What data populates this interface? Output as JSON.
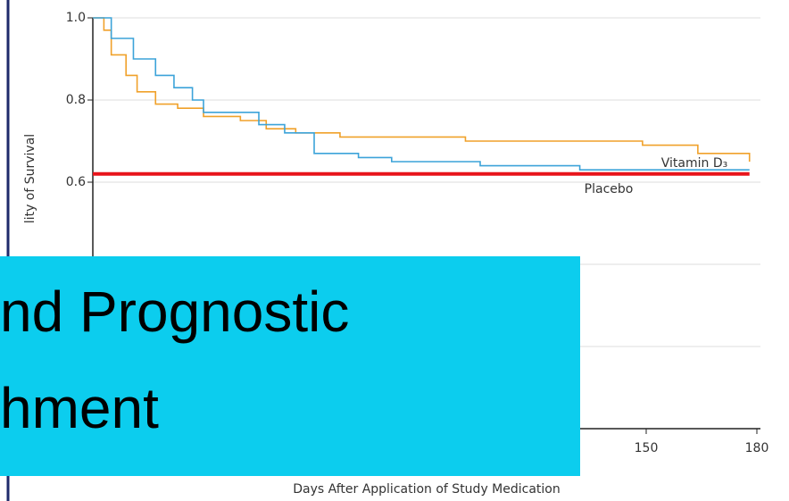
{
  "chart_data": {
    "type": "line",
    "step": true,
    "ylabel": "lity of Survival",
    "xlabel": "Days After Application of Study Medication",
    "xlim": [
      0,
      180
    ],
    "ylim": [
      0,
      1
    ],
    "xticks": [
      150,
      180
    ],
    "yticks": [
      {
        "value": 1,
        "label": "1.0"
      },
      0.8,
      0.6
    ],
    "grid_values": [
      0.4,
      0.2
    ],
    "grid": true,
    "series": [
      {
        "name": "Vitamin D₃",
        "color": "#f0a12a",
        "x": [
          0,
          3,
          5,
          9,
          12,
          17,
          23,
          30,
          40,
          47,
          55,
          67,
          81,
          101,
          125,
          149,
          164,
          178
        ],
        "values": [
          1.0,
          0.97,
          0.91,
          0.86,
          0.82,
          0.79,
          0.78,
          0.76,
          0.75,
          0.73,
          0.72,
          0.71,
          0.71,
          0.7,
          0.7,
          0.69,
          0.67,
          0.65
        ]
      },
      {
        "name": "Placebo",
        "color": "#3ca3d9",
        "x": [
          0,
          5,
          11,
          17,
          22,
          27,
          30,
          38,
          45,
          52,
          60,
          72,
          81,
          105,
          132,
          159,
          178
        ],
        "values": [
          1.0,
          0.95,
          0.9,
          0.86,
          0.83,
          0.8,
          0.77,
          0.77,
          0.74,
          0.72,
          0.67,
          0.66,
          0.65,
          0.64,
          0.63,
          0.63,
          0.63
        ]
      }
    ],
    "reference_line": {
      "value": 0.62,
      "x_end": 178,
      "color": "#e8141b"
    }
  },
  "overlay": {
    "lines": [
      "nd Prognostic",
      "hment"
    ],
    "color": "#0ccdee"
  }
}
